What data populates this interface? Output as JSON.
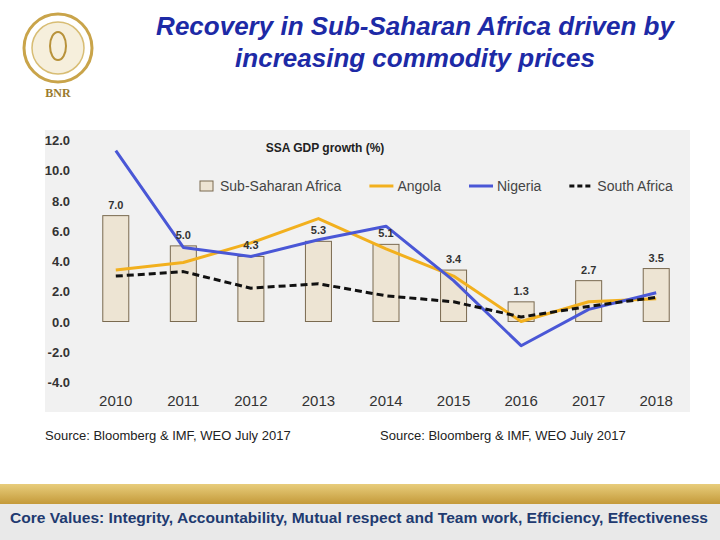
{
  "chart_data": {
    "type": "bar",
    "title": "Recovery in Sub-Saharan Africa driven by increasing commodity prices",
    "subtitle": "SSA GDP growth (%)",
    "logo_text": "BNR",
    "sources": [
      "Source: Bloomberg & IMF, WEO July 2017",
      "Source: Bloomberg & IMF, WEO July 2017"
    ],
    "footer": "Core Values: Integrity, Accountability, Mutual respect and Team work, Efficiency, Effectiveness",
    "categories": [
      "2010",
      "2011",
      "2012",
      "2013",
      "2014",
      "2015",
      "2016",
      "2017",
      "2018"
    ],
    "series": [
      {
        "name": "Sub-Saharan Africa",
        "type": "bar",
        "color": "#ede4d3",
        "values": [
          7.0,
          5.0,
          4.3,
          5.3,
          5.1,
          3.4,
          1.3,
          2.7,
          3.5
        ],
        "value_labels": [
          "7.0",
          "5.0",
          "4.3",
          "5.3",
          "5.1",
          "3.4",
          "1.3",
          "2.7",
          "3.5"
        ]
      },
      {
        "name": "Angola",
        "type": "line",
        "color": "#f2b01e",
        "line_style": "solid",
        "values": [
          3.4,
          3.9,
          5.2,
          6.8,
          4.8,
          3.0,
          0.0,
          1.3,
          1.5
        ]
      },
      {
        "name": "Nigeria",
        "type": "line",
        "color": "#4a57d6",
        "line_style": "solid",
        "values": [
          11.3,
          4.9,
          4.3,
          5.4,
          6.3,
          2.7,
          -1.6,
          0.8,
          1.9
        ]
      },
      {
        "name": "South Africa",
        "type": "line",
        "color": "#111111",
        "line_style": "dashed",
        "values": [
          3.0,
          3.3,
          2.2,
          2.5,
          1.7,
          1.3,
          0.3,
          1.0,
          1.6
        ]
      }
    ],
    "ylim": [
      -4,
      12
    ],
    "yticks": [
      {
        "value": -4,
        "label": "-4.0"
      },
      {
        "value": -2,
        "label": "-2.0"
      },
      {
        "value": 0,
        "label": "0.0"
      },
      {
        "value": 2,
        "label": "2.0"
      },
      {
        "value": 4,
        "label": "4.0"
      },
      {
        "value": 6,
        "label": "6.0"
      },
      {
        "value": 8,
        "label": "8.0"
      },
      {
        "value": 10,
        "label": "10.0"
      },
      {
        "value": 12,
        "label": "12.0"
      }
    ],
    "grid": false,
    "legend": "top",
    "data_labels": true
  }
}
